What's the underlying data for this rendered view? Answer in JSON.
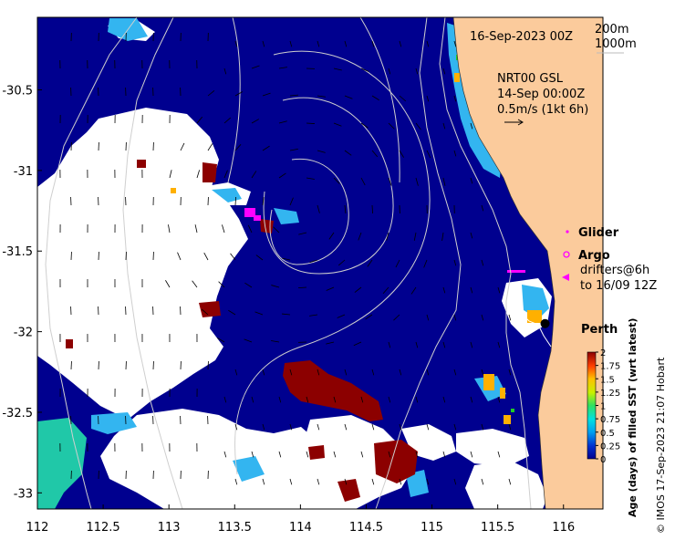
{
  "chart_data": {
    "type": "map",
    "xlim": [
      112,
      116.3
    ],
    "ylim": [
      -33.1,
      -30.05
    ],
    "x_ticks": [
      "112",
      "112.5",
      "113",
      "113.5",
      "114",
      "114.5",
      "115",
      "115.5",
      "116"
    ],
    "y_ticks": [
      "-30.5",
      "-31",
      "-31.5",
      "-32",
      "-32.5",
      "-33"
    ],
    "date_label": "16-Sep-2023 00Z",
    "contour_labels": [
      "200m",
      "1000m"
    ],
    "current_info": [
      "NRT00 GSL",
      "14-Sep 00:00Z",
      "0.5m/s (1kt 6h)"
    ],
    "legend": {
      "glider": "Glider",
      "argo": "Argo",
      "drifters": [
        "drifters@6h",
        "to 16/09 12Z"
      ]
    },
    "city": {
      "name": "Perth",
      "lon": 115.86,
      "lat": -31.95
    },
    "colorbar": {
      "title": "Age (days) of filled SST (wrt latest)",
      "ticks": [
        "2",
        "1.75",
        "1.5",
        "1.25",
        "1",
        "0.75",
        "0.5",
        "0.25",
        "0"
      ],
      "min": 0,
      "max": 2
    },
    "credit": "© IMOS 17-Sep-2023 21:07 Hobart"
  },
  "colors": {
    "ocean_recent": "#00008f",
    "no_data": "#ffffff",
    "land": "#fbcb9c",
    "old_data": "#8c0000",
    "teal": "#20c8a8",
    "light_blue": "#33b5f0",
    "argo": "#ff00ff"
  }
}
